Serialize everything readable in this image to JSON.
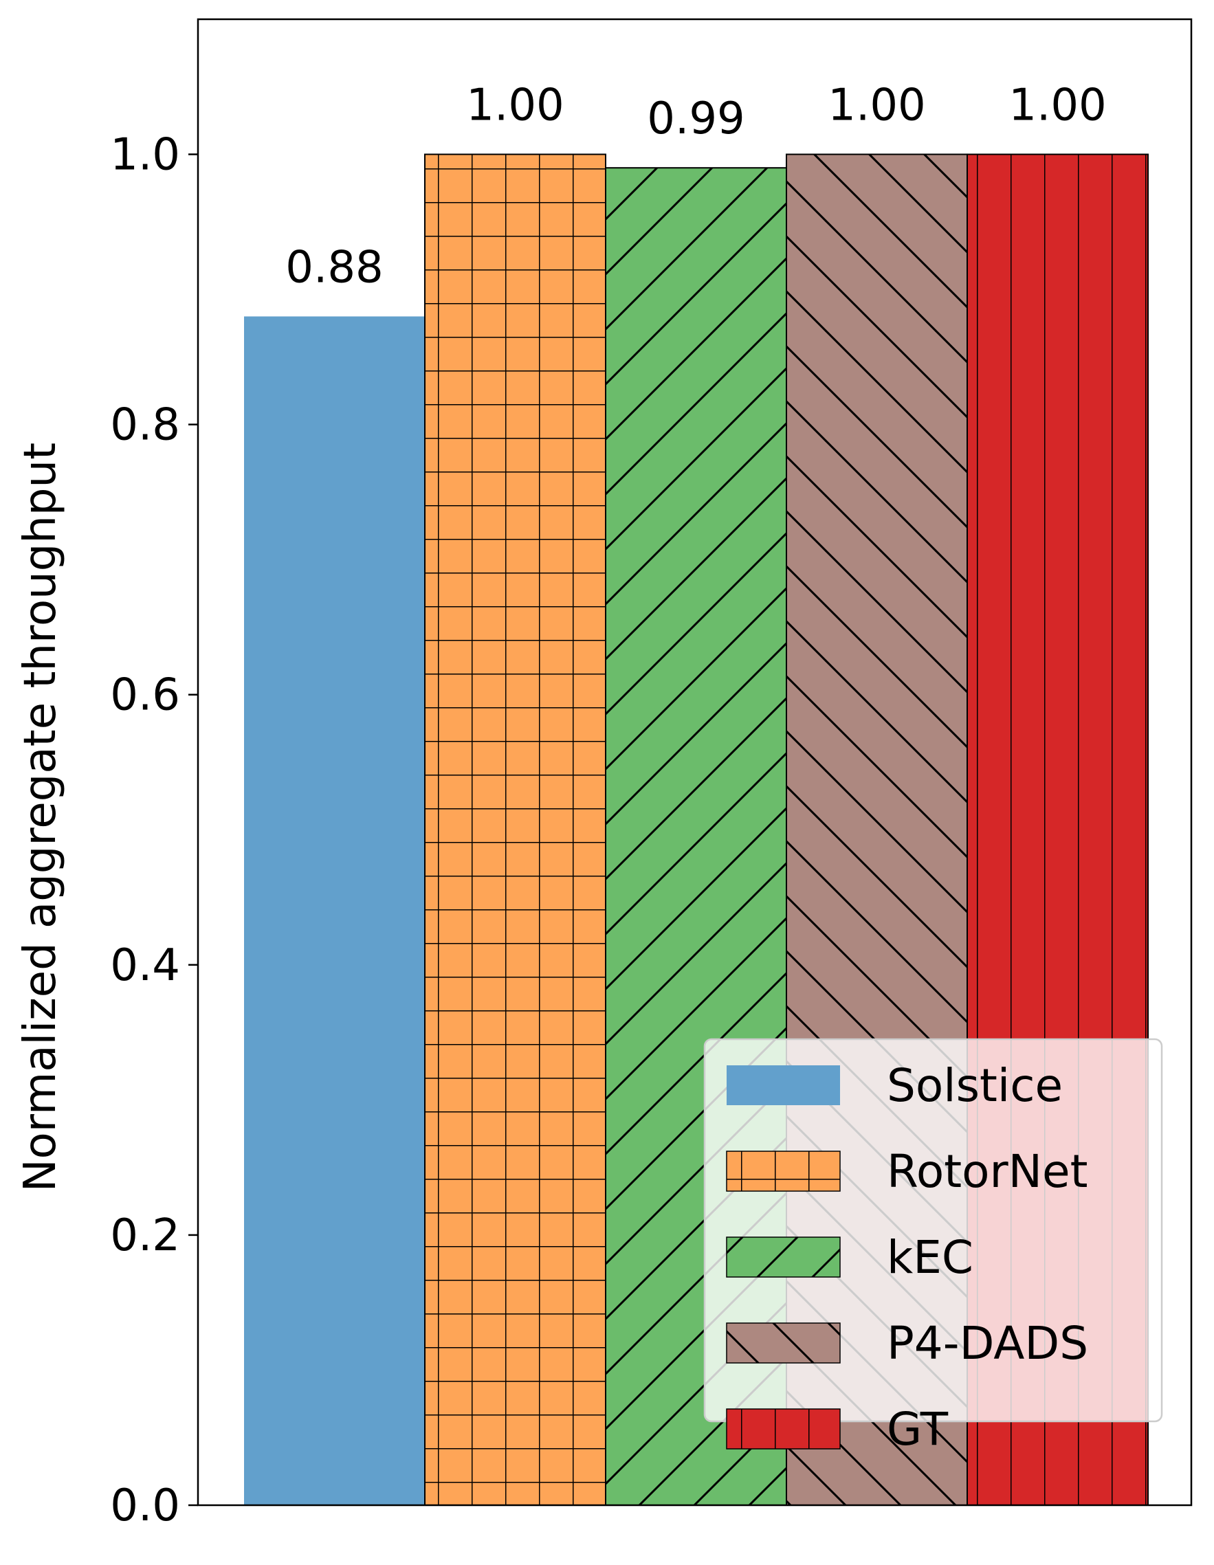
{
  "chart_data": {
    "type": "bar",
    "title": "",
    "xlabel": "",
    "ylabel": "Normalized aggregate throughput",
    "ylim": [
      0,
      1.1
    ],
    "yticks": [
      0.0,
      0.2,
      0.4,
      0.6,
      0.8,
      1.0
    ],
    "ytick_labels": [
      "0.0",
      "0.2",
      "0.4",
      "0.6",
      "0.8",
      "1.0"
    ],
    "grid": false,
    "legend_position": "bottom-right",
    "series": [
      {
        "name": "Solstice",
        "value": 0.88,
        "label": "0.88",
        "color": "#62a0cc",
        "hatch": "none"
      },
      {
        "name": "RotorNet",
        "value": 1.0,
        "label": "1.00",
        "color": "#fea557",
        "hatch": "grid"
      },
      {
        "name": "kEC",
        "value": 0.99,
        "label": "0.99",
        "color": "#6bbc6b",
        "hatch": "forward-diagonal"
      },
      {
        "name": "P4-DADS",
        "value": 1.0,
        "label": "1.00",
        "color": "#ad8880",
        "hatch": "back-diagonal"
      },
      {
        "name": "GT",
        "value": 1.0,
        "label": "1.00",
        "color": "#d62728",
        "hatch": "vertical"
      }
    ]
  }
}
